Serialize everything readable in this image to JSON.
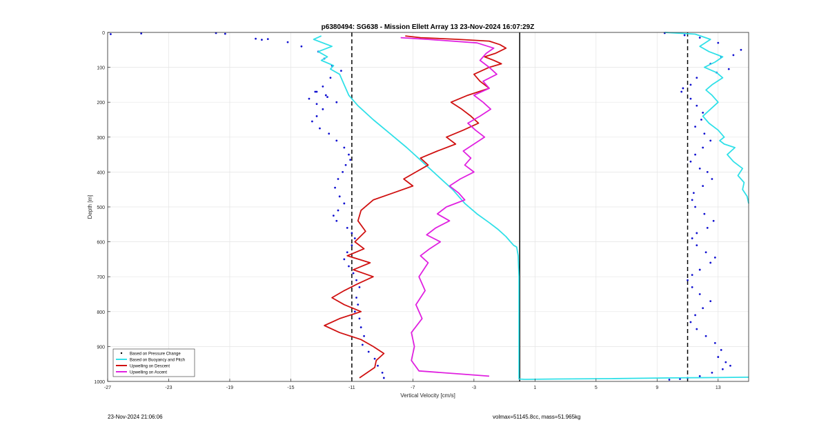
{
  "footer": {
    "left": "23-Nov-2024 21:06:06",
    "right": "volmax=51145.8cc, mass=51.965kg"
  },
  "colors": {
    "pressure": "#1010d0",
    "buoyancy": "#30e0e8",
    "descent": "#d01010",
    "ascent": "#e020e0",
    "grid": "#e4e4e4"
  },
  "chart_data": {
    "type": "line",
    "title": "p6380494: SG638 - Mission Ellett Array 13 23-Nov-2024 16:07:29Z",
    "xlabel": "Vertical Velocity [cm/s]",
    "ylabel": "Depth [m]",
    "xlim": [
      -27,
      15
    ],
    "ylim": [
      0,
      1000
    ],
    "y_reversed": true,
    "grid": true,
    "legend_location": "bottom-left",
    "xticks": [
      -27,
      -23,
      -19,
      -15,
      -11,
      -7,
      -3,
      1,
      5,
      9,
      13
    ],
    "yticks": [
      0,
      100,
      200,
      300,
      400,
      500,
      600,
      700,
      800,
      900,
      1000
    ],
    "reference_lines": [
      {
        "x": -11,
        "style": "dashed"
      },
      {
        "x": 11,
        "style": "dashed"
      },
      {
        "x": 0,
        "style": "solid"
      }
    ],
    "legend": [
      {
        "key": "pressure",
        "label": "Based on Pressure Change"
      },
      {
        "key": "buoyancy",
        "label": "Based on Buoyancy and Pitch"
      },
      {
        "key": "descent",
        "label": "Upwelling on Descent"
      },
      {
        "key": "ascent",
        "label": "Upwelling on Ascent"
      }
    ],
    "series": [
      {
        "name": "Based on Pressure Change",
        "key": "pressure",
        "style": "dots",
        "x": [
          -26.8,
          -24.8,
          -19.9,
          -19.3,
          -17.3,
          -16.9,
          -16.5,
          -15.2,
          -14.3,
          -13.2,
          -12.8,
          -12.3,
          -11.7,
          -12.4,
          -12.9,
          -13.3,
          -12.6,
          -12.0,
          -12.7,
          -13.4,
          -13.8,
          -13.3,
          -12.9,
          -13.3,
          -13.6,
          -13.1,
          -12.5,
          -12.0,
          -11.5,
          -11.2,
          -11.1,
          -11.4,
          -11.6,
          -11.9,
          -12.1,
          -11.8,
          -11.5,
          -11.9,
          -12.2,
          -12.0,
          -11.3,
          -11.0,
          -10.8,
          -11.0,
          -11.3,
          -11.5,
          -11.2,
          -10.9,
          -10.7,
          -10.5,
          -10.7,
          -10.6,
          -10.8,
          -10.5,
          -10.4,
          -10.2,
          -10.3,
          -9.9,
          -9.5,
          -9.3,
          -9.0,
          -8.9
        ],
        "y": [
          5,
          3,
          2,
          4,
          18,
          21,
          19,
          28,
          40,
          55,
          75,
          95,
          110,
          130,
          155,
          170,
          185,
          200,
          180,
          170,
          190,
          205,
          220,
          240,
          255,
          275,
          290,
          310,
          330,
          350,
          365,
          380,
          400,
          420,
          445,
          470,
          490,
          510,
          525,
          540,
          560,
          575,
          590,
          610,
          630,
          650,
          670,
          690,
          710,
          730,
          760,
          780,
          800,
          820,
          845,
          870,
          895,
          915,
          935,
          955,
          975,
          990
        ],
        "x2": [
          9.5,
          10.8,
          11.8,
          13.0,
          14.5,
          14.0,
          13.2,
          12.5,
          13.7,
          12.9,
          11.6,
          11.2,
          10.7,
          10.6,
          11.2,
          11.6,
          12.0,
          11.9,
          11.5,
          12.1,
          12.5,
          12.0,
          11.5,
          11.2,
          11.8,
          12.3,
          12.6,
          12.0,
          11.4,
          11.3,
          11.5,
          12.1,
          12.7,
          12.3,
          11.6,
          11.3,
          11.6,
          12.2,
          12.8,
          12.5,
          11.8,
          11.3,
          11.0,
          11.3,
          11.8,
          12.5,
          12.0,
          11.5,
          11.2,
          11.6,
          12.2,
          12.8,
          13.2,
          13.0,
          13.5,
          13.8,
          13.3,
          12.6,
          11.8,
          11.0,
          10.5,
          9.8
        ],
        "y2": [
          2,
          8,
          15,
          30,
          50,
          65,
          70,
          90,
          105,
          115,
          130,
          150,
          160,
          170,
          190,
          210,
          230,
          250,
          270,
          290,
          310,
          330,
          350,
          370,
          390,
          400,
          420,
          440,
          460,
          480,
          500,
          520,
          540,
          560,
          575,
          590,
          610,
          630,
          645,
          660,
          680,
          695,
          710,
          730,
          750,
          770,
          790,
          810,
          830,
          850,
          870,
          890,
          910,
          930,
          945,
          955,
          965,
          975,
          985,
          990,
          993,
          995
        ]
      },
      {
        "name": "Based on Buoyancy and Pitch",
        "key": "buoyancy",
        "style": "line",
        "x": [
          -13.0,
          -13.5,
          -12.3,
          -13.2,
          -12.6,
          -13.0,
          -12.2,
          -12.4,
          -11.8,
          -11.5,
          -11.2,
          -10.6,
          -9.6,
          -8.5,
          -7.4,
          -6.4,
          -5.4,
          -4.4,
          -3.6,
          -2.8,
          -2.0,
          -1.4,
          -0.9,
          -0.6,
          -0.4,
          -0.2,
          -0.1,
          -0.05,
          -0.05,
          -0.05,
          -0.05,
          -0.05,
          -0.05,
          -0.05,
          -0.05,
          0.3,
          2.5,
          6.0,
          10.0,
          13.0,
          15.0
        ],
        "y": [
          10,
          20,
          40,
          55,
          70,
          80,
          95,
          105,
          120,
          150,
          180,
          210,
          250,
          290,
          330,
          370,
          410,
          450,
          490,
          520,
          545,
          565,
          585,
          600,
          610,
          615,
          640,
          700,
          780,
          860,
          940,
          980,
          988,
          990,
          993,
          994,
          993,
          992,
          990,
          989,
          988
        ],
        "x2": [
          9.5,
          11.5,
          12.5,
          11.8,
          12.4,
          13.3,
          12.8,
          12.1,
          12.9,
          13.3,
          12.6,
          12.2,
          12.6,
          13.0,
          12.5,
          12.0,
          12.4,
          13.0,
          13.4,
          13.1,
          13.4,
          14.1,
          13.6,
          14.0,
          14.6,
          14.3,
          14.7,
          14.6,
          14.9,
          15.0
        ],
        "y2": [
          0,
          5,
          20,
          40,
          55,
          70,
          85,
          100,
          115,
          130,
          150,
          165,
          180,
          200,
          220,
          240,
          260,
          280,
          300,
          310,
          320,
          330,
          350,
          370,
          390,
          410,
          430,
          450,
          470,
          490
        ]
      },
      {
        "name": "Upwelling on Descent",
        "key": "descent",
        "style": "line",
        "x": [
          -7.5,
          -6.5,
          -4.0,
          -2.0,
          -1.3,
          -0.9,
          -1.6,
          -2.3,
          -1.7,
          -1.2,
          -2.0,
          -3.0,
          -2.6,
          -2.0,
          -3.4,
          -4.5,
          -3.8,
          -3.2,
          -2.7,
          -3.7,
          -4.8,
          -4.2,
          -5.4,
          -6.5,
          -6.0,
          -6.8,
          -7.6,
          -7.0,
          -8.3,
          -9.6,
          -10.4,
          -10.6,
          -10.1,
          -10.8,
          -10.2,
          -11.3,
          -9.8,
          -10.9,
          -9.6,
          -10.6,
          -11.5,
          -12.3,
          -11.5,
          -10.4,
          -11.8,
          -12.8,
          -11.8,
          -10.4,
          -9.6,
          -8.9,
          -9.4,
          -9.5,
          -10.5
        ],
        "y": [
          10,
          15,
          20,
          25,
          35,
          45,
          60,
          70,
          80,
          90,
          100,
          120,
          140,
          160,
          180,
          200,
          220,
          240,
          260,
          280,
          300,
          320,
          340,
          360,
          380,
          400,
          420,
          440,
          460,
          480,
          510,
          540,
          570,
          600,
          620,
          640,
          660,
          680,
          700,
          720,
          740,
          760,
          780,
          800,
          820,
          840,
          860,
          880,
          900,
          920,
          940,
          960,
          990
        ]
      },
      {
        "name": "Upwelling on Ascent",
        "key": "ascent",
        "style": "line",
        "x": [
          -7.8,
          -6.0,
          -2.8,
          -1.7,
          -2.2,
          -2.6,
          -2.0,
          -1.5,
          -2.4,
          -2.0,
          -3.0,
          -2.4,
          -1.9,
          -2.6,
          -3.4,
          -2.9,
          -2.3,
          -3.0,
          -3.7,
          -3.2,
          -3.6,
          -3.0,
          -3.9,
          -4.6,
          -4.0,
          -3.6,
          -4.8,
          -5.4,
          -4.6,
          -5.5,
          -6.1,
          -5.2,
          -5.9,
          -6.5,
          -6.0,
          -6.6,
          -6.2,
          -6.8,
          -6.4,
          -7.1,
          -6.9,
          -7.1,
          -6.6,
          -3.5,
          -2.0
        ],
        "y": [
          15,
          20,
          30,
          45,
          60,
          80,
          100,
          120,
          140,
          160,
          180,
          200,
          220,
          240,
          260,
          280,
          300,
          320,
          340,
          360,
          380,
          400,
          420,
          440,
          460,
          480,
          500,
          520,
          540,
          560,
          580,
          600,
          620,
          640,
          660,
          700,
          740,
          780,
          820,
          860,
          900,
          940,
          970,
          980,
          985
        ]
      }
    ]
  }
}
